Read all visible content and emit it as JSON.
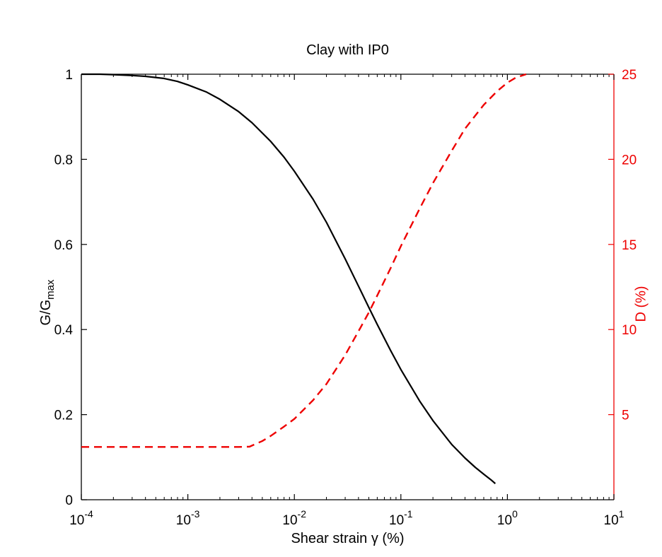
{
  "figure": {
    "title": "Clay with IP0"
  },
  "labels": {
    "ylabel_left_main": "G/G",
    "ylabel_left_sub": "max",
    "ylabel_right": "D (%)",
    "xlabel": "Shear strain γ (%)"
  },
  "colors": {
    "left_axis": "#000000",
    "right_axis": "#ee0000",
    "background": "#ffffff"
  },
  "chart_data": {
    "type": "line",
    "title": "Clay with IP0",
    "xlabel": "Shear strain γ (%)",
    "ylabel_left": "G/Gmax",
    "ylabel_right": "D (%)",
    "x_scale": "log",
    "xlim": [
      0.0001,
      10
    ],
    "ylim_left": [
      0,
      1
    ],
    "ylim_right": [
      0,
      25
    ],
    "grid": false,
    "x_tick_base": "10",
    "x_tick_exponents": [
      "-4",
      "-3",
      "-2",
      "-1",
      "0",
      "1"
    ],
    "y_ticks_left": [
      0,
      0.2,
      0.4,
      0.6,
      0.8,
      1
    ],
    "y_tick_labels_left": [
      "0",
      "0.2",
      "0.4",
      "0.6",
      "0.8",
      "1"
    ],
    "y_ticks_right": [
      5,
      10,
      15,
      20,
      25
    ],
    "y_tick_labels_right": [
      "5",
      "10",
      "15",
      "20",
      "25"
    ],
    "series": [
      {
        "name": "G/Gmax",
        "data_name": "g-gmax-curve",
        "axis": "left",
        "style": "solid",
        "color": "#000000",
        "width": 2.2,
        "points": [
          [
            0.0001,
            1.0
          ],
          [
            0.00015,
            1.0
          ],
          [
            0.0002,
            0.999
          ],
          [
            0.0003,
            0.997
          ],
          [
            0.0004,
            0.995
          ],
          [
            0.0006,
            0.99
          ],
          [
            0.0008,
            0.983
          ],
          [
            0.001,
            0.975
          ],
          [
            0.0015,
            0.958
          ],
          [
            0.002,
            0.941
          ],
          [
            0.003,
            0.912
          ],
          [
            0.004,
            0.886
          ],
          [
            0.006,
            0.842
          ],
          [
            0.008,
            0.805
          ],
          [
            0.01,
            0.772
          ],
          [
            0.015,
            0.706
          ],
          [
            0.02,
            0.652
          ],
          [
            0.03,
            0.566
          ],
          [
            0.04,
            0.502
          ],
          [
            0.05,
            0.452
          ],
          [
            0.06,
            0.412
          ],
          [
            0.08,
            0.351
          ],
          [
            0.1,
            0.306
          ],
          [
            0.15,
            0.232
          ],
          [
            0.2,
            0.186
          ],
          [
            0.3,
            0.13
          ],
          [
            0.4,
            0.098
          ],
          [
            0.5,
            0.076
          ],
          [
            0.6,
            0.06
          ],
          [
            0.7,
            0.047
          ],
          [
            0.77,
            0.038
          ]
        ]
      },
      {
        "name": "D",
        "data_name": "damping-curve",
        "axis": "right",
        "style": "dashed",
        "color": "#ee0000",
        "width": 2.4,
        "points": [
          [
            0.0001,
            3.1
          ],
          [
            0.0003,
            3.1
          ],
          [
            0.0006,
            3.1
          ],
          [
            0.001,
            3.1
          ],
          [
            0.0015,
            3.1
          ],
          [
            0.002,
            3.1
          ],
          [
            0.003,
            3.1
          ],
          [
            0.0038,
            3.12
          ],
          [
            0.005,
            3.45
          ],
          [
            0.006,
            3.75
          ],
          [
            0.008,
            4.3
          ],
          [
            0.01,
            4.75
          ],
          [
            0.015,
            5.85
          ],
          [
            0.02,
            6.8
          ],
          [
            0.03,
            8.5
          ],
          [
            0.04,
            9.9
          ],
          [
            0.05,
            11.0
          ],
          [
            0.06,
            12.0
          ],
          [
            0.08,
            13.6
          ],
          [
            0.1,
            14.9
          ],
          [
            0.15,
            17.1
          ],
          [
            0.2,
            18.6
          ],
          [
            0.3,
            20.5
          ],
          [
            0.4,
            21.8
          ],
          [
            0.6,
            23.2
          ],
          [
            0.8,
            24.0
          ],
          [
            1.0,
            24.5
          ],
          [
            1.2,
            24.8
          ],
          [
            1.5,
            25.0
          ]
        ]
      }
    ]
  }
}
